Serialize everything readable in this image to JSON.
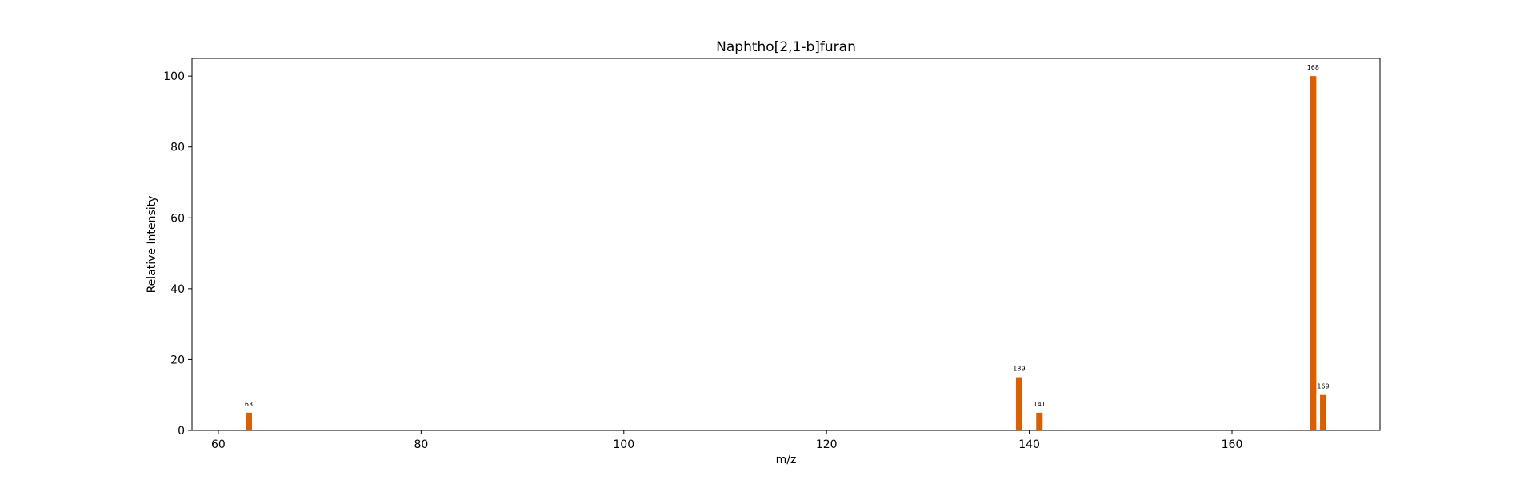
{
  "chart_data": {
    "type": "bar",
    "title": "Naphtho[2,1-b]furan",
    "xlabel": "m/z",
    "ylabel": "Relative Intensity",
    "xlim": [
      57.4,
      174.6
    ],
    "ylim": [
      0,
      105
    ],
    "xticks": [
      60,
      80,
      100,
      120,
      140,
      160
    ],
    "yticks": [
      0,
      20,
      40,
      60,
      80,
      100
    ],
    "grid": false,
    "bar_color": "#d95f02",
    "peaks": [
      {
        "x": 63,
        "y": 5,
        "label": "63"
      },
      {
        "x": 139,
        "y": 15,
        "label": "139"
      },
      {
        "x": 141,
        "y": 5,
        "label": "141"
      },
      {
        "x": 168,
        "y": 100,
        "label": "168"
      },
      {
        "x": 169,
        "y": 10,
        "label": "169"
      }
    ]
  }
}
